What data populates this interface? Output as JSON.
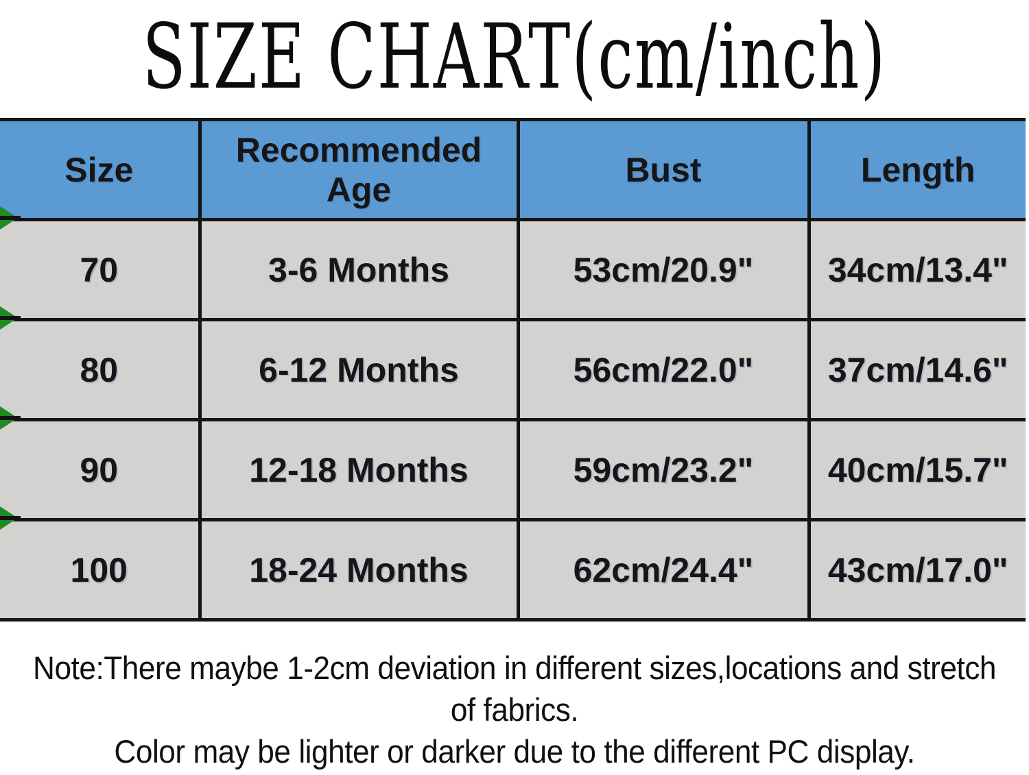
{
  "title": "SIZE CHART(cm/inch)",
  "table": {
    "headers": [
      "Size",
      "Recommended Age",
      "Bust",
      "Length"
    ],
    "rows": [
      [
        "70",
        "3-6 Months",
        "53cm/20.9\"",
        "34cm/13.4\""
      ],
      [
        "80",
        "6-12 Months",
        "56cm/22.0\"",
        "37cm/14.6\""
      ],
      [
        "90",
        "12-18 Months",
        "59cm/23.2\"",
        "40cm/15.7\""
      ],
      [
        "100",
        "18-24 Months",
        "62cm/24.4\"",
        "43cm/17.0\""
      ]
    ]
  },
  "notes": {
    "lines": [
      "Note:There maybe 1-2cm deviation in different sizes,locations and stretch",
      "of fabrics.",
      "Color may be lighter or darker due to the different PC display."
    ]
  },
  "colors": {
    "header_bg": "#5b9ad2",
    "row_bg": "#d4d2d0",
    "border": "#141414",
    "corner_marker_green": "#1f8a1f",
    "text": "#161616"
  },
  "chart_data": {
    "type": "table",
    "title": "SIZE CHART(cm/inch)",
    "columns": [
      "Size",
      "Recommended Age",
      "Bust",
      "Length"
    ],
    "rows": [
      [
        "70",
        "3-6 Months",
        "53cm/20.9\"",
        "34cm/13.4\""
      ],
      [
        "80",
        "6-12 Months",
        "56cm/22.0\"",
        "37cm/14.6\""
      ],
      [
        "90",
        "12-18 Months",
        "59cm/23.2\"",
        "40cm/15.7\""
      ],
      [
        "100",
        "18-24 Months",
        "62cm/24.4\"",
        "43cm/17.0\""
      ]
    ],
    "notes": "Note:There maybe 1-2cm deviation in different sizes,locations and stretch of fabrics. Color may be lighter or darker due to the different PC display."
  }
}
